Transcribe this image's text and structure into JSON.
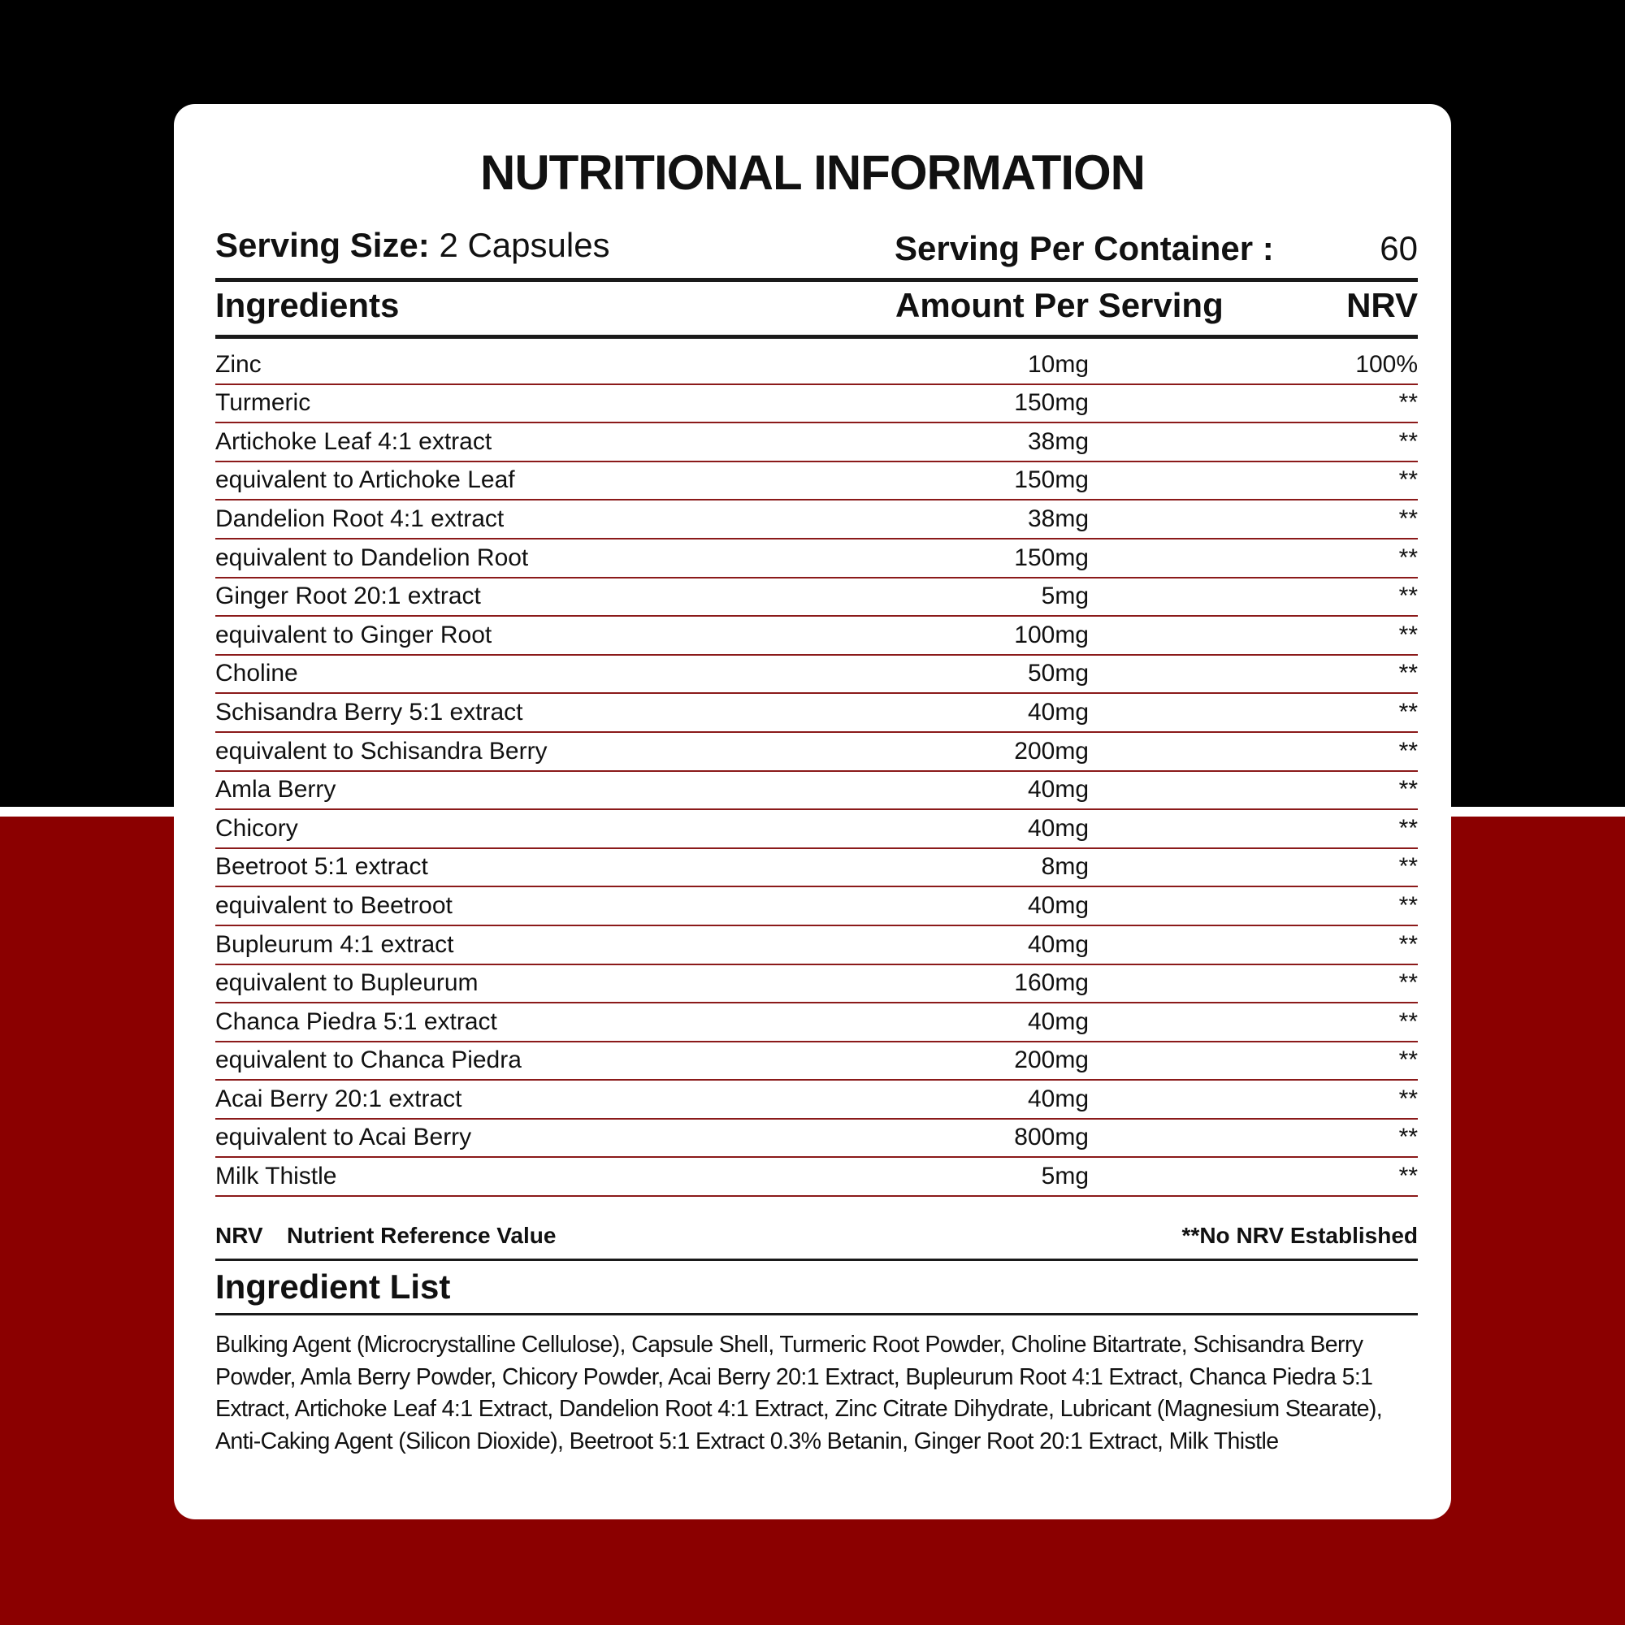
{
  "colors": {
    "background_top": "#000000",
    "background_bottom": "#8b0000",
    "card": "#ffffff",
    "row_divider": "#8b1a1a"
  },
  "title": "NUTRITIONAL INFORMATION",
  "serving": {
    "size_label": "Serving Size:",
    "size_value": "2 Capsules",
    "per_container_label": "Serving Per Container :",
    "per_container_value": "60"
  },
  "table": {
    "headers": {
      "ingredient": "Ingredients",
      "amount": "Amount Per Serving",
      "nrv": "NRV"
    },
    "rows": [
      {
        "ingredient": "Zinc",
        "amount": "10mg",
        "nrv": "100%"
      },
      {
        "ingredient": "Turmeric",
        "amount": "150mg",
        "nrv": "**"
      },
      {
        "ingredient": "Artichoke Leaf 4:1 extract",
        "amount": "38mg",
        "nrv": "**"
      },
      {
        "ingredient": "equivalent to Artichoke Leaf",
        "amount": "150mg",
        "nrv": "**"
      },
      {
        "ingredient": "Dandelion Root 4:1 extract",
        "amount": "38mg",
        "nrv": "**"
      },
      {
        "ingredient": "equivalent to Dandelion Root",
        "amount": "150mg",
        "nrv": "**"
      },
      {
        "ingredient": "Ginger Root 20:1 extract",
        "amount": "5mg",
        "nrv": "**"
      },
      {
        "ingredient": "equivalent to Ginger Root",
        "amount": "100mg",
        "nrv": "**"
      },
      {
        "ingredient": "Choline",
        "amount": "50mg",
        "nrv": "**"
      },
      {
        "ingredient": "Schisandra Berry 5:1 extract",
        "amount": "40mg",
        "nrv": "**"
      },
      {
        "ingredient": "equivalent to Schisandra Berry",
        "amount": "200mg",
        "nrv": "**"
      },
      {
        "ingredient": "Amla Berry",
        "amount": "40mg",
        "nrv": "**"
      },
      {
        "ingredient": "Chicory",
        "amount": "40mg",
        "nrv": "**"
      },
      {
        "ingredient": "Beetroot 5:1 extract",
        "amount": "8mg",
        "nrv": "**"
      },
      {
        "ingredient": "equivalent to Beetroot",
        "amount": "40mg",
        "nrv": "**"
      },
      {
        "ingredient": "Bupleurum 4:1 extract",
        "amount": "40mg",
        "nrv": "**"
      },
      {
        "ingredient": "equivalent to Bupleurum",
        "amount": "160mg",
        "nrv": "**"
      },
      {
        "ingredient": "Chanca Piedra 5:1 extract",
        "amount": "40mg",
        "nrv": "**"
      },
      {
        "ingredient": "equivalent to Chanca Piedra",
        "amount": "200mg",
        "nrv": "**"
      },
      {
        "ingredient": "Acai Berry 20:1 extract",
        "amount": "40mg",
        "nrv": "**"
      },
      {
        "ingredient": "equivalent to Acai Berry",
        "amount": "800mg",
        "nrv": "**"
      },
      {
        "ingredient": "Milk Thistle",
        "amount": "5mg",
        "nrv": "**"
      }
    ]
  },
  "footnote": {
    "nrv_abbr": "NRV",
    "nrv_meaning": "Nutrient Reference Value",
    "no_nrv": "**No NRV Established"
  },
  "ingredient_list": {
    "title": "Ingredient List",
    "text": "Bulking Agent (Microcrystalline Cellulose), Capsule Shell, Turmeric Root Powder, Choline Bitartrate, Schisandra Berry Powder, Amla Berry Powder, Chicory Powder, Acai Berry 20:1 Extract, Bupleurum Root 4:1 Extract, Chanca Piedra 5:1 Extract, Artichoke Leaf 4:1 Extract, Dandelion Root 4:1 Extract, Zinc Citrate Dihydrate, Lubricant (Magnesium Stearate), Anti-Caking Agent (Silicon Dioxide), Beetroot 5:1 Extract 0.3% Betanin, Ginger Root 20:1 Extract, Milk Thistle"
  }
}
